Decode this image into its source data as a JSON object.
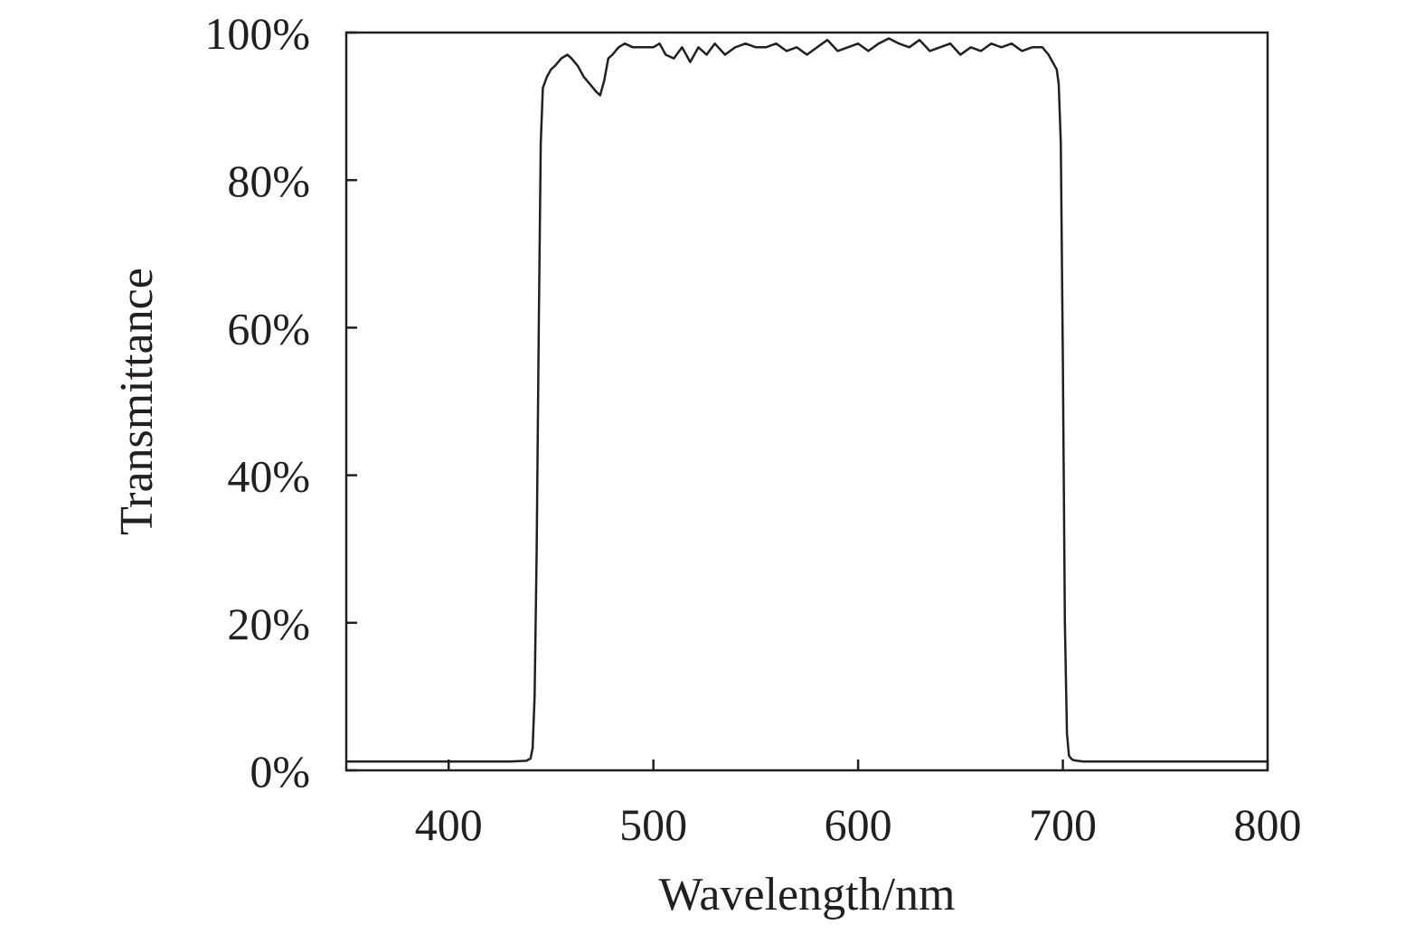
{
  "chart_data": {
    "type": "line",
    "title": "",
    "xlabel": "Wavelength/nm",
    "ylabel": "Transmittance",
    "xlim": [
      350,
      800
    ],
    "ylim": [
      0,
      100
    ],
    "x_ticks": [
      400,
      500,
      600,
      700,
      800
    ],
    "y_ticks": [
      0,
      20,
      40,
      60,
      80,
      100
    ],
    "y_tick_labels": [
      "0%",
      "20%",
      "40%",
      "60%",
      "80%",
      "100%"
    ],
    "grid": false,
    "legend": "none",
    "line_color": "#231f20",
    "series": [
      {
        "x": [
          350,
          400,
          430,
          438,
          440,
          441,
          442,
          443,
          444,
          445,
          446,
          448,
          450,
          452,
          455,
          458,
          460,
          463,
          466,
          469,
          472,
          474,
          476,
          478,
          480,
          483,
          486,
          490,
          495,
          500,
          503,
          506,
          510,
          514,
          518,
          522,
          526,
          530,
          535,
          540,
          545,
          550,
          555,
          560,
          565,
          570,
          575,
          580,
          585,
          590,
          595,
          600,
          605,
          610,
          615,
          620,
          625,
          630,
          635,
          640,
          645,
          650,
          655,
          660,
          665,
          670,
          675,
          680,
          685,
          690,
          693,
          695,
          697,
          698,
          699,
          700,
          701,
          702,
          703,
          704,
          705,
          707,
          710,
          750,
          800
        ],
        "y": [
          1.2,
          1.2,
          1.2,
          1.3,
          1.6,
          3,
          10,
          30,
          60,
          85,
          92.5,
          94,
          95,
          95.5,
          96.5,
          97,
          96.5,
          95.5,
          94,
          93,
          92,
          91.5,
          93.5,
          96.5,
          97,
          98,
          98.5,
          98,
          98,
          98,
          98.5,
          97,
          96.5,
          98,
          96,
          98,
          97,
          98.5,
          97,
          98,
          98.5,
          98,
          98,
          98.5,
          97.5,
          98,
          97,
          98,
          99,
          97.5,
          98,
          98.5,
          97.5,
          98.5,
          99.2,
          98.5,
          98,
          99,
          97.5,
          98,
          98.5,
          97,
          98,
          97.5,
          98.5,
          98,
          98.5,
          97.5,
          98,
          98,
          97,
          96,
          95,
          93,
          85,
          55,
          20,
          5,
          2,
          1.6,
          1.4,
          1.3,
          1.2,
          1.2,
          1.2
        ]
      }
    ]
  }
}
